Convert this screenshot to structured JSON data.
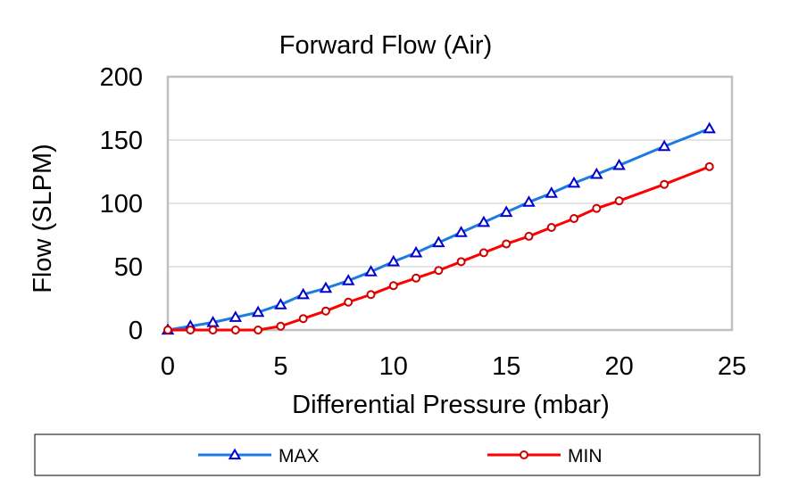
{
  "chart_data": {
    "type": "line",
    "title": "Forward Flow (Air)",
    "xlabel": "Differential Pressure (mbar)",
    "ylabel": "Flow (SLPM)",
    "xlim": [
      0,
      25
    ],
    "ylim": [
      0,
      200
    ],
    "xticks": [
      "0",
      "5",
      "10",
      "15",
      "20",
      "25"
    ],
    "yticks": [
      "0",
      "50",
      "100",
      "150",
      "200"
    ],
    "grid": "horizontal",
    "legend_position": "bottom",
    "series": [
      {
        "name": "MAX",
        "color": "#1c7ae0",
        "marker": "triangle",
        "marker_color": "#0000cc",
        "x": [
          0,
          1,
          2,
          3,
          4,
          5,
          6,
          7,
          8,
          9,
          10,
          11,
          12,
          13,
          14,
          15,
          16,
          17,
          18,
          19,
          20,
          22,
          24
        ],
        "y": [
          0,
          3,
          6,
          10,
          14,
          20,
          28,
          33,
          39,
          46,
          54,
          61,
          69,
          77,
          85,
          93,
          101,
          108,
          116,
          123,
          130,
          145,
          159
        ]
      },
      {
        "name": "MIN",
        "color": "#ff0000",
        "marker": "circle",
        "marker_color": "#cc0000",
        "x": [
          0,
          1,
          2,
          3,
          4,
          5,
          6,
          7,
          8,
          9,
          10,
          11,
          12,
          13,
          14,
          15,
          16,
          17,
          18,
          19,
          20,
          22,
          24
        ],
        "y": [
          0,
          0,
          0,
          0,
          0,
          3,
          9,
          15,
          22,
          28,
          35,
          41,
          47,
          54,
          61,
          68,
          74,
          81,
          88,
          96,
          102,
          115,
          129
        ]
      }
    ]
  }
}
